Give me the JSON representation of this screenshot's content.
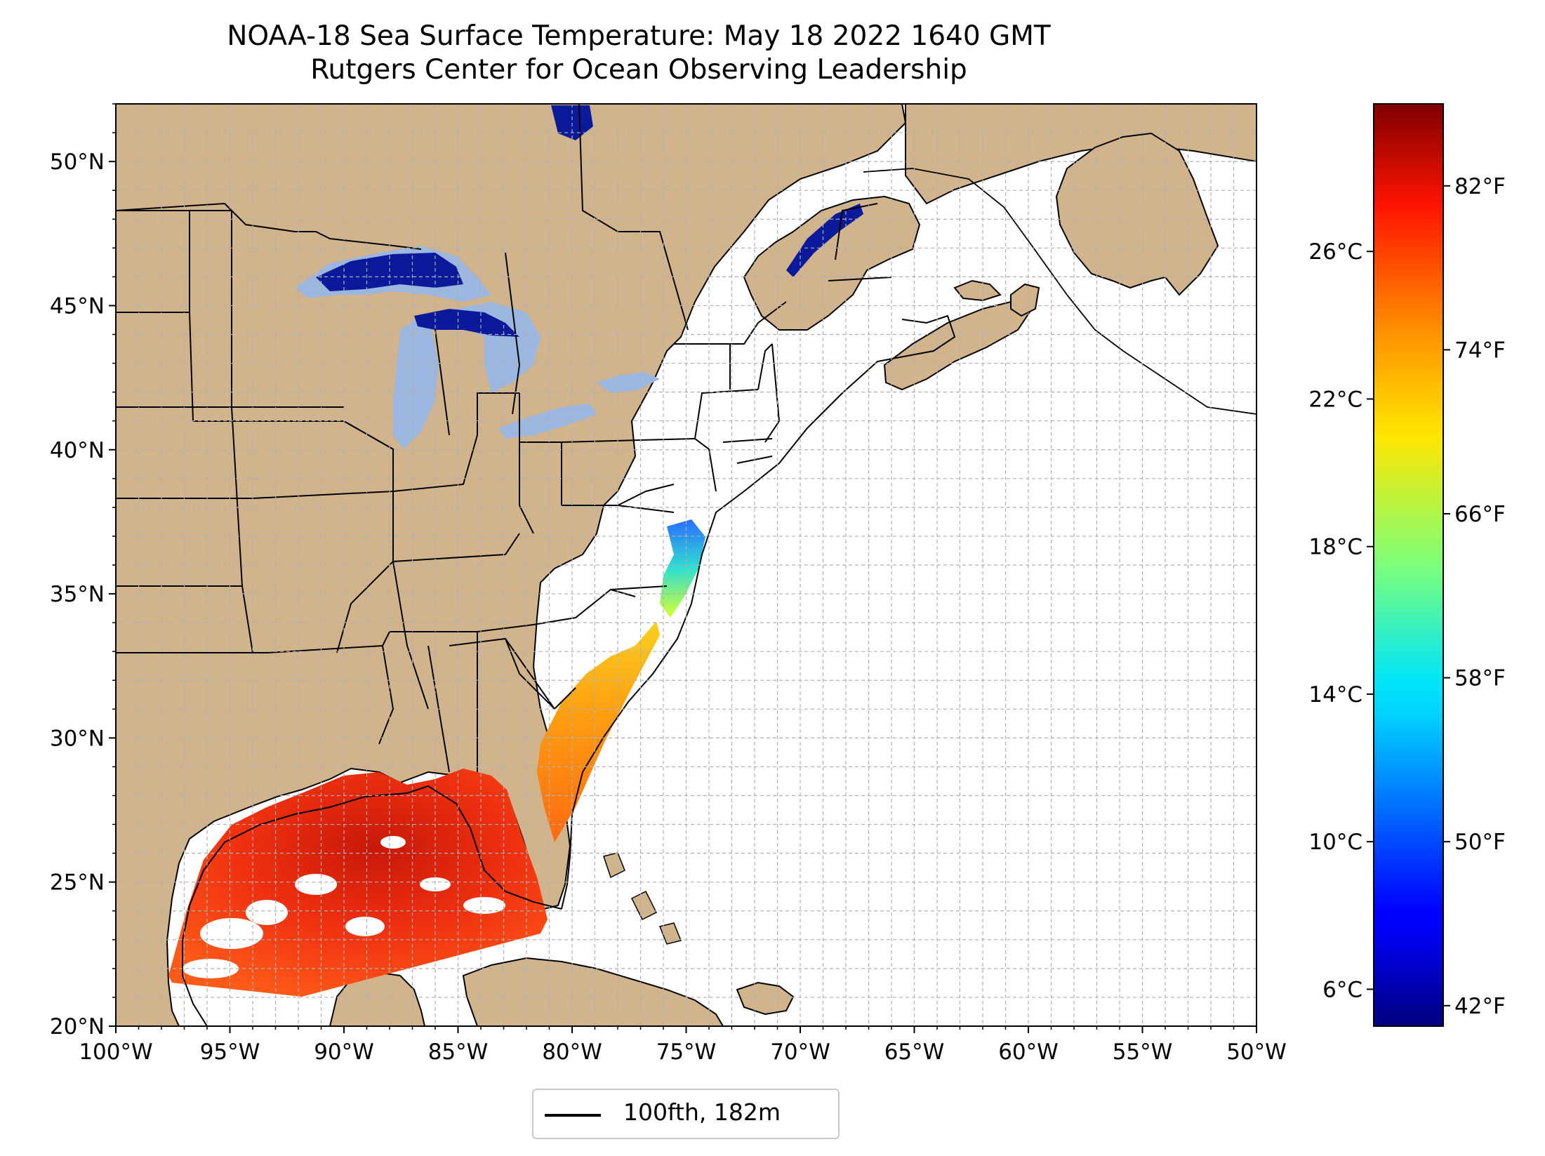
{
  "title": {
    "line1": "NOAA-18 Sea Surface Temperature: May 18 2022 1640 GMT",
    "line2": "Rutgers Center for Ocean Observing Leadership"
  },
  "map": {
    "lon_range": [
      -100,
      -50
    ],
    "lat_range": [
      20,
      52
    ],
    "x_ticks": [
      "100°W",
      "95°W",
      "90°W",
      "85°W",
      "80°W",
      "75°W",
      "70°W",
      "65°W",
      "60°W",
      "55°W",
      "50°W"
    ],
    "y_ticks": [
      "20°N",
      "25°N",
      "30°N",
      "35°N",
      "40°N",
      "45°N",
      "50°N"
    ],
    "y_tick_values": [
      20,
      25,
      30,
      35,
      40,
      45,
      50
    ],
    "grid": "dashed light gray, 1° spacing",
    "land_color": "#d2b48c",
    "lake_color": "#9bb7e0",
    "ocean_color": "#ffffff"
  },
  "colorbar": {
    "colormap": "jet",
    "range_c": [
      5,
      30
    ],
    "celsius_ticks": [
      "6°C",
      "10°C",
      "14°C",
      "18°C",
      "22°C",
      "26°C"
    ],
    "celsius_values": [
      6,
      10,
      14,
      18,
      22,
      26
    ],
    "fahrenheit_ticks": [
      "42°F",
      "50°F",
      "58°F",
      "66°F",
      "74°F",
      "82°F"
    ],
    "fahrenheit_values": [
      42,
      50,
      58,
      66,
      74,
      82
    ]
  },
  "legend": {
    "label": "100fth, 182m",
    "placement": "bottom-center"
  }
}
